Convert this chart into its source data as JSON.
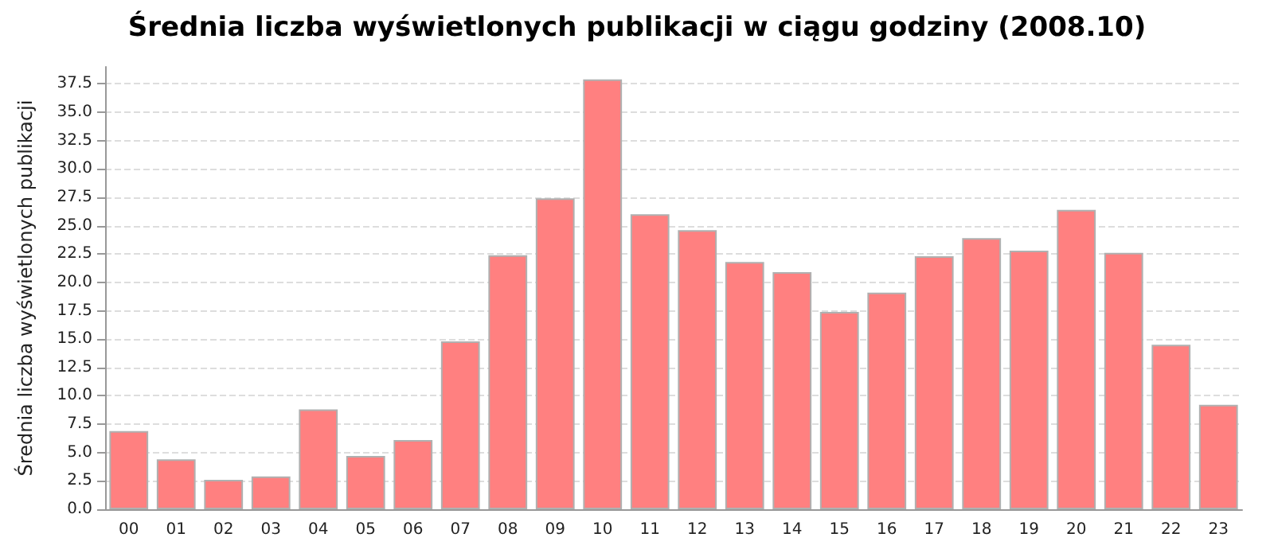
{
  "chart_data": {
    "type": "bar",
    "title": "Średnia liczba wyświetlonych publikacji w ciągu godziny (2008.10)",
    "ylabel": "Średnia liczba wyświetlonych publikacji",
    "categories": [
      "00",
      "01",
      "02",
      "03",
      "04",
      "05",
      "06",
      "07",
      "08",
      "09",
      "10",
      "11",
      "12",
      "13",
      "14",
      "15",
      "16",
      "17",
      "18",
      "19",
      "20",
      "21",
      "22",
      "23"
    ],
    "values": [
      6.9,
      4.4,
      2.6,
      2.9,
      8.8,
      4.7,
      6.1,
      14.8,
      22.4,
      27.4,
      37.9,
      26.0,
      24.6,
      21.8,
      20.9,
      17.4,
      19.1,
      22.3,
      23.9,
      22.8,
      26.4,
      22.6,
      14.5,
      9.2
    ],
    "color": "#ff8080",
    "ylim": [
      0,
      39
    ],
    "yticks": [
      {
        "value": 0,
        "label": "0.0"
      },
      {
        "value": 2.5,
        "label": "2.5"
      },
      {
        "value": 5,
        "label": "5.0"
      },
      {
        "value": 7.5,
        "label": "7.5"
      },
      {
        "value": 10,
        "label": "10.0"
      },
      {
        "value": 12.5,
        "label": "12.5"
      },
      {
        "value": 15,
        "label": "15.0"
      },
      {
        "value": 17.5,
        "label": "17.5"
      },
      {
        "value": 20,
        "label": "20.0"
      },
      {
        "value": 22.5,
        "label": "22.5"
      },
      {
        "value": 25,
        "label": "25.0"
      },
      {
        "value": 27.5,
        "label": "27.5"
      },
      {
        "value": 30,
        "label": "30.0"
      },
      {
        "value": 32.5,
        "label": "32.5"
      },
      {
        "value": 35,
        "label": "35.0"
      },
      {
        "value": 37.5,
        "label": "37.5"
      }
    ],
    "grid": "y"
  }
}
